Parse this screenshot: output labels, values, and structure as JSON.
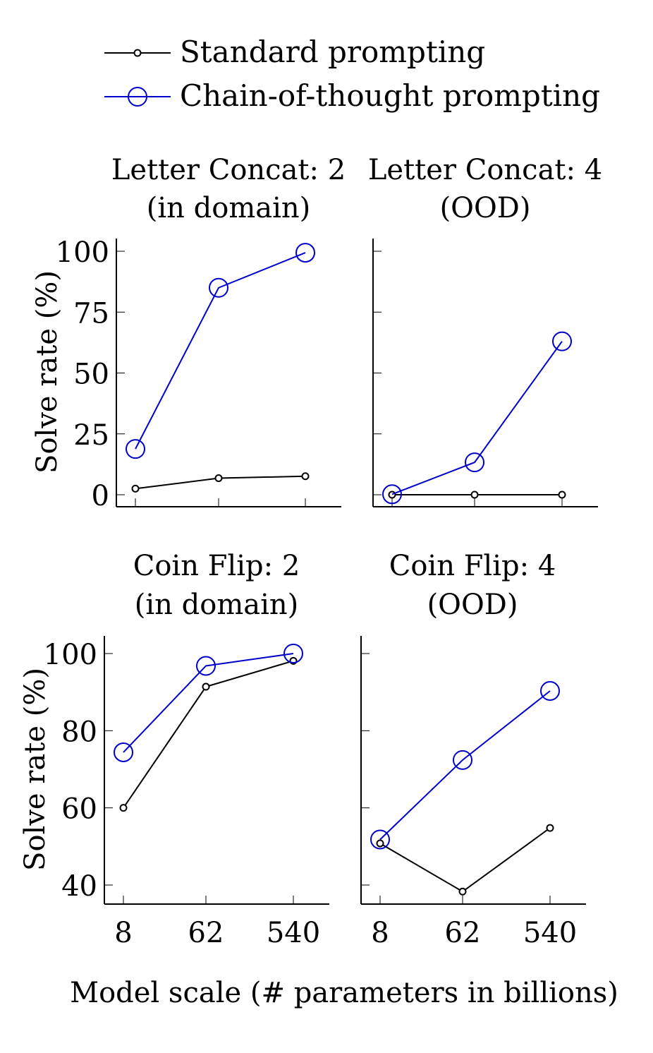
{
  "legend": {
    "items": [
      {
        "label": "Standard prompting",
        "color": "#000000",
        "marker": "small-circle"
      },
      {
        "label": "Chain-of-thought prompting",
        "color": "#0000cc",
        "marker": "large-circle"
      }
    ]
  },
  "shared": {
    "xlabel": "Model scale (# parameters in billions)",
    "ylabel": "Solve rate (%)"
  },
  "chart_data": [
    {
      "type": "line",
      "title_line1": "Letter Concat: 2",
      "title_line2": "(in domain)",
      "categories": [
        "8",
        "62",
        "540"
      ],
      "ylim": [
        0,
        100
      ],
      "yticks": [
        "0",
        "25",
        "50",
        "75",
        "100"
      ],
      "show_y_tick_labels": true,
      "show_x_tick_labels": false,
      "series": [
        {
          "name": "Standard prompting",
          "values": [
            2.5,
            6.8,
            7.6
          ]
        },
        {
          "name": "Chain-of-thought prompting",
          "values": [
            18.8,
            85.0,
            99.4
          ]
        }
      ]
    },
    {
      "type": "line",
      "title_line1": "Letter Concat: 4",
      "title_line2": "(OOD)",
      "categories": [
        "8",
        "62",
        "540"
      ],
      "ylim": [
        0,
        100
      ],
      "yticks": [
        "0",
        "25",
        "50",
        "75",
        "100"
      ],
      "show_y_tick_labels": false,
      "show_x_tick_labels": false,
      "series": [
        {
          "name": "Standard prompting",
          "values": [
            0.0,
            0.0,
            0.0
          ]
        },
        {
          "name": "Chain-of-thought prompting",
          "values": [
            0.2,
            13.3,
            63.0
          ]
        }
      ]
    },
    {
      "type": "line",
      "title_line1": "Coin Flip: 2",
      "title_line2": "(in domain)",
      "categories": [
        "8",
        "62",
        "540"
      ],
      "ylim": [
        40,
        100
      ],
      "yticks": [
        "40",
        "60",
        "80",
        "100"
      ],
      "show_y_tick_labels": true,
      "show_x_tick_labels": true,
      "series": [
        {
          "name": "Standard prompting",
          "values": [
            60.0,
            91.4,
            98.1
          ]
        },
        {
          "name": "Chain-of-thought prompting",
          "values": [
            74.4,
            96.8,
            100.0
          ]
        }
      ]
    },
    {
      "type": "line",
      "title_line1": "Coin Flip: 4",
      "title_line2": "(OOD)",
      "categories": [
        "8",
        "62",
        "540"
      ],
      "ylim": [
        40,
        100
      ],
      "yticks": [
        "40",
        "60",
        "80",
        "100"
      ],
      "show_y_tick_labels": false,
      "show_x_tick_labels": true,
      "series": [
        {
          "name": "Standard prompting",
          "values": [
            50.8,
            38.3,
            54.8
          ]
        },
        {
          "name": "Chain-of-thought prompting",
          "values": [
            51.8,
            72.4,
            90.3
          ]
        }
      ]
    }
  ]
}
